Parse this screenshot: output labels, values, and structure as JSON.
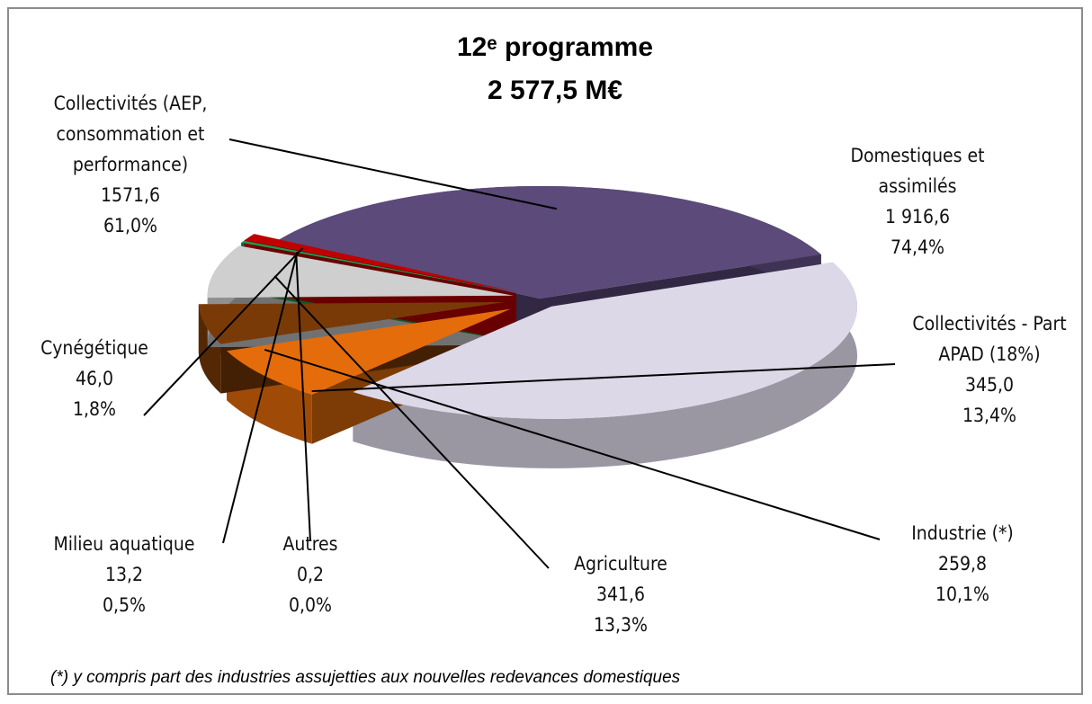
{
  "chart_data": {
    "type": "pie",
    "title": "12ᵉ programme",
    "subtitle": "2 577,5 M€",
    "footnote": "(*) y compris part des industries assujetties aux nouvelles redevances domestiques",
    "categories": [
      "Collectivités (AEP, consommation et performance)",
      "Domestiques et assimilés",
      "Collectivités - Part APAD (18%)",
      "Industrie (*)",
      "Agriculture",
      "Autres",
      "Milieu aquatique",
      "Cynégétique"
    ],
    "values": [
      1571.6,
      1916.6,
      345.0,
      259.8,
      341.6,
      0.2,
      13.2,
      46.0
    ],
    "value_labels": [
      "1571,6",
      "1 916,6",
      "345,0",
      "259,8",
      "341,6",
      "0,2",
      "13,2",
      "46,0"
    ],
    "percentages": [
      61.0,
      74.4,
      13.4,
      10.1,
      13.3,
      0.0,
      0.5,
      1.8
    ],
    "percentage_labels": [
      "61,0%",
      "74,4%",
      "13,4%",
      "10,1%",
      "13,3%",
      "0,0%",
      "0,5%",
      "1,8%"
    ],
    "colors": [
      "#5b4a7a",
      "#dcd8e8",
      "#e46c0a",
      "#7a3a08",
      "#cfcfcf",
      "#b3b300",
      "#1f9a50",
      "#c00000"
    ]
  }
}
